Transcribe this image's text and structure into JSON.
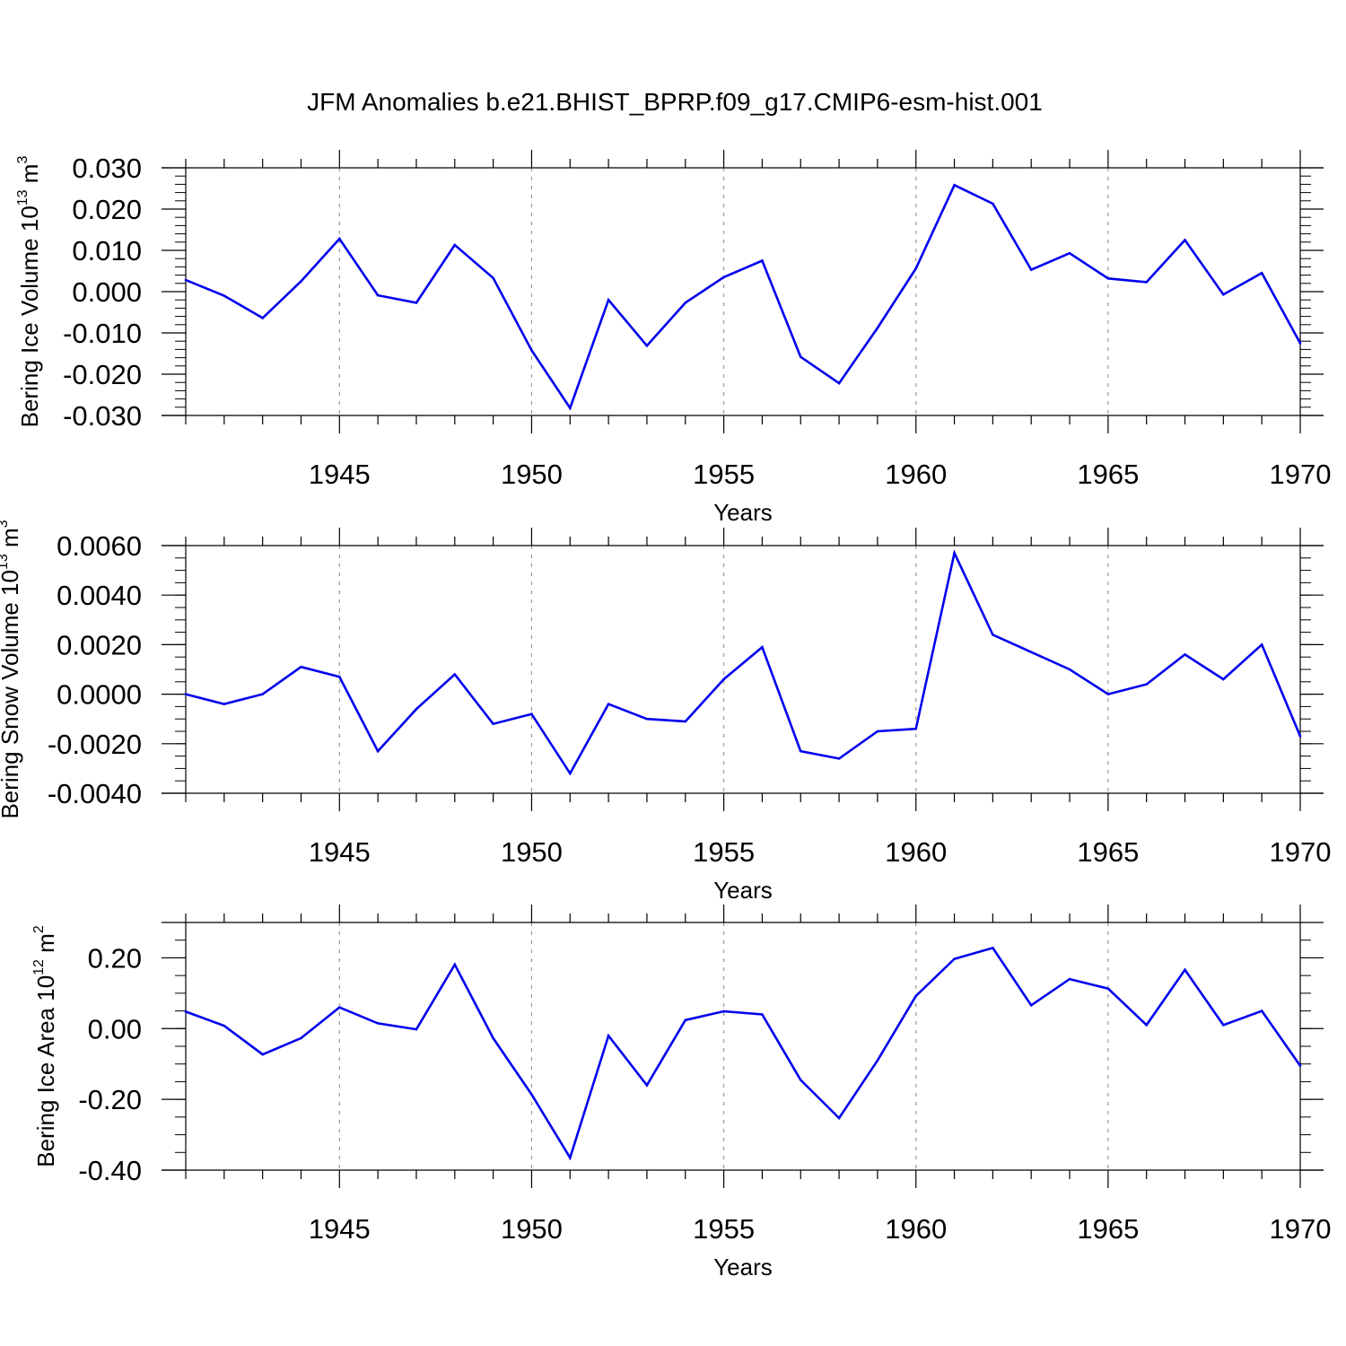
{
  "title": "JFM Anomalies b.e21.BHIST_BPRP.f09_g17.CMIP6-esm-hist.001",
  "colors": {
    "series": "#0000ee",
    "frame": "#000000",
    "grid": "#999999"
  },
  "chart_data": [
    {
      "type": "line",
      "ylabel": {
        "text": "Bering Ice Volume 10",
        "sup": "13",
        "unit": " m",
        "unit_sup": "3"
      },
      "xlabel": "Years",
      "xlim": [
        1941,
        1970
      ],
      "ylim": [
        -0.03,
        0.03
      ],
      "x_ticks": [
        "1945",
        "1950",
        "1955",
        "1960",
        "1965",
        "1970"
      ],
      "y_ticks": [
        "-0.030",
        "-0.020",
        "-0.010",
        "0.000",
        "0.010",
        "0.020",
        "0.030"
      ],
      "y_tick_values": [
        -0.03,
        -0.02,
        -0.01,
        0.0,
        0.01,
        0.02,
        0.03
      ],
      "y_minor_step": 0.002,
      "grid": "vertical dashed at major x ticks",
      "x": [
        1941,
        1942,
        1943,
        1944,
        1945,
        1946,
        1947,
        1948,
        1949,
        1950,
        1951,
        1952,
        1953,
        1954,
        1955,
        1956,
        1957,
        1958,
        1959,
        1960,
        1961,
        1962,
        1963,
        1964,
        1965,
        1966,
        1967,
        1968,
        1969,
        1970
      ],
      "values": [
        0.0028,
        -0.001,
        -0.0064,
        0.0025,
        0.0128,
        -0.0009,
        -0.0027,
        0.0113,
        0.0033,
        -0.0142,
        -0.0282,
        -0.002,
        -0.0131,
        -0.0027,
        0.0035,
        0.0075,
        -0.0158,
        -0.0222,
        -0.0088,
        0.0056,
        0.0258,
        0.0213,
        0.0053,
        0.0093,
        0.0032,
        0.0023,
        0.0125,
        -0.0007,
        0.0045,
        -0.0125
      ]
    },
    {
      "type": "line",
      "ylabel": {
        "text": "Bering Snow Volume 10",
        "sup": "13",
        "unit": " m",
        "unit_sup": "3"
      },
      "xlabel": "Years",
      "xlim": [
        1941,
        1970
      ],
      "ylim": [
        -0.004,
        0.006
      ],
      "x_ticks": [
        "1945",
        "1950",
        "1955",
        "1960",
        "1965",
        "1970"
      ],
      "y_ticks": [
        "-0.0040",
        "-0.0020",
        "0.0000",
        "0.0020",
        "0.0040",
        "0.0060"
      ],
      "y_tick_values": [
        -0.004,
        -0.002,
        0.0,
        0.002,
        0.004,
        0.006
      ],
      "y_minor_step": 0.0005,
      "grid": "vertical dashed at major x ticks",
      "x": [
        1941,
        1942,
        1943,
        1944,
        1945,
        1946,
        1947,
        1948,
        1949,
        1950,
        1951,
        1952,
        1953,
        1954,
        1955,
        1956,
        1957,
        1958,
        1959,
        1960,
        1961,
        1962,
        1963,
        1964,
        1965,
        1966,
        1967,
        1968,
        1969,
        1970
      ],
      "values": [
        0.0,
        -0.0004,
        0.0,
        0.0011,
        0.0007,
        -0.0023,
        -0.0006,
        0.0008,
        -0.0012,
        -0.0008,
        -0.0032,
        -0.0004,
        -0.001,
        -0.0011,
        0.0006,
        0.0019,
        -0.0023,
        -0.0026,
        -0.0015,
        -0.0014,
        0.0057,
        0.0024,
        0.0017,
        0.001,
        0.0,
        0.0004,
        0.0016,
        0.0006,
        0.002,
        -0.0017
      ]
    },
    {
      "type": "line",
      "ylabel": {
        "text": "Bering Ice Area 10",
        "sup": "12",
        "unit": " m",
        "unit_sup": "2"
      },
      "xlabel": "Years",
      "xlim": [
        1941,
        1970
      ],
      "ylim": [
        -0.4,
        0.3
      ],
      "x_ticks": [
        "1945",
        "1950",
        "1955",
        "1960",
        "1965",
        "1970"
      ],
      "y_ticks": [
        "-0.40",
        "-0.20",
        "0.00",
        "0.20"
      ],
      "y_tick_values": [
        -0.4,
        -0.2,
        0.0,
        0.2
      ],
      "y_minor_step": 0.05,
      "grid": "vertical dashed at major x ticks",
      "x": [
        1941,
        1942,
        1943,
        1944,
        1945,
        1946,
        1947,
        1948,
        1949,
        1950,
        1951,
        1952,
        1953,
        1954,
        1955,
        1956,
        1957,
        1958,
        1959,
        1960,
        1961,
        1962,
        1963,
        1964,
        1965,
        1966,
        1967,
        1968,
        1969,
        1970
      ],
      "values": [
        0.048,
        0.008,
        -0.073,
        -0.027,
        0.06,
        0.015,
        -0.002,
        0.181,
        -0.027,
        -0.186,
        -0.365,
        -0.02,
        -0.16,
        0.024,
        0.049,
        0.04,
        -0.145,
        -0.253,
        -0.09,
        0.092,
        0.197,
        0.228,
        0.066,
        0.14,
        0.113,
        0.01,
        0.166,
        0.01,
        0.05,
        -0.105
      ]
    }
  ]
}
